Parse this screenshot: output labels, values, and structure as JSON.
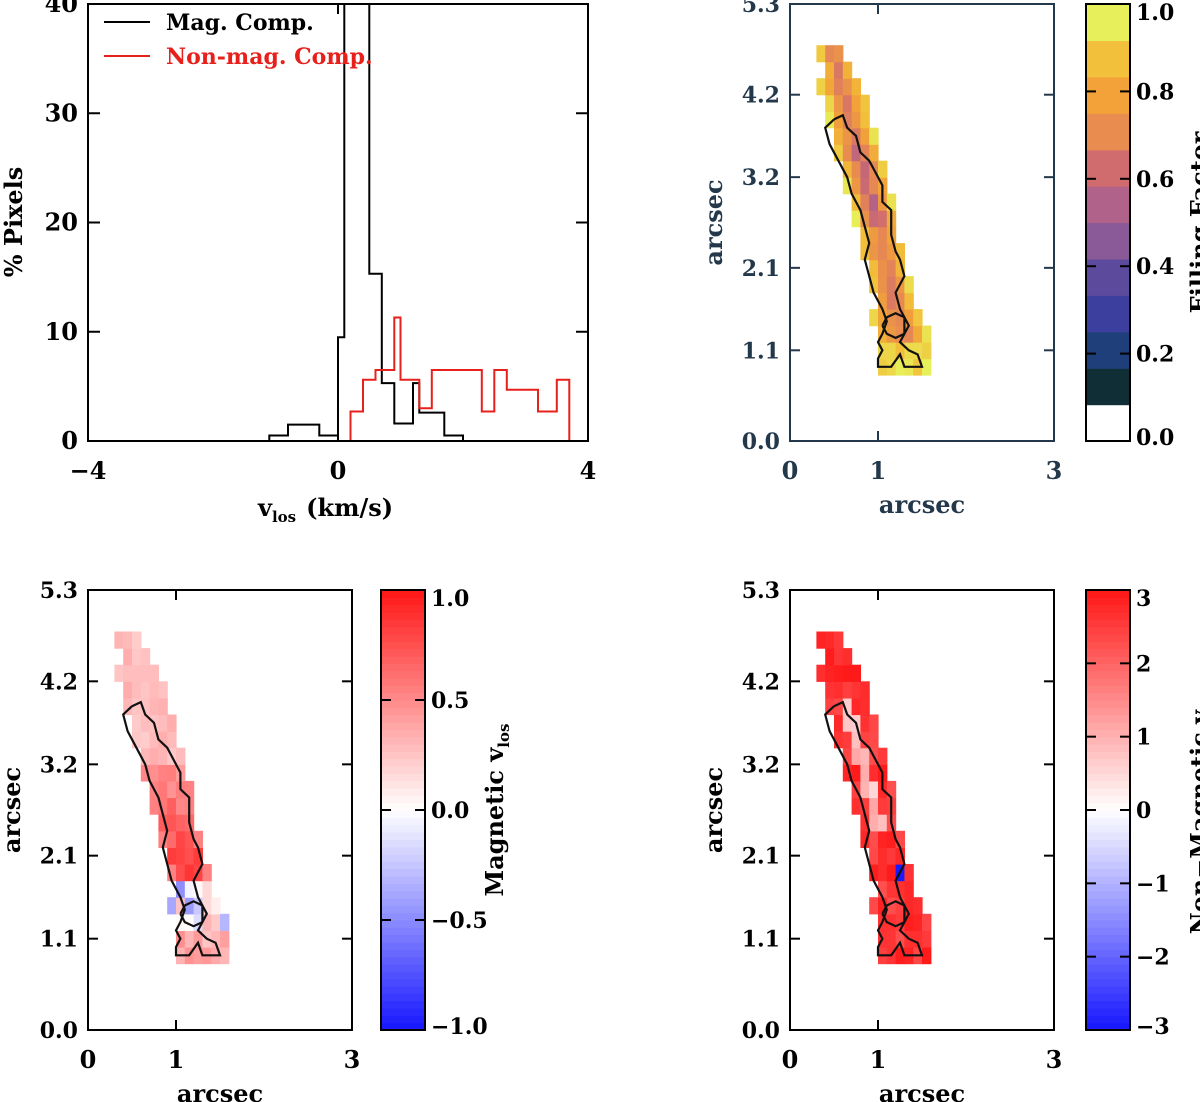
{
  "chart_data": [
    {
      "type": "line",
      "panel": "histogram",
      "xlabel_main": "v",
      "xlabel_sub": "los",
      "xlabel_unit": "(km/s)",
      "ylabel": "% Pixels",
      "xlim": [
        -4,
        4
      ],
      "ylim": [
        0,
        40
      ],
      "xticks": [
        "−4",
        "0",
        "4"
      ],
      "xtick_values": [
        -4,
        0,
        4
      ],
      "yticks": [
        "0",
        "10",
        "20",
        "30",
        "40"
      ],
      "ytick_values": [
        0,
        10,
        20,
        30,
        40
      ],
      "legend_position": "top-left",
      "series": [
        {
          "name": "Mag. Comp.",
          "color": "#000000",
          "steps": [
            [
              -4.0,
              0
            ],
            [
              -1.1,
              0
            ],
            [
              -1.1,
              0.5
            ],
            [
              -0.8,
              0.5
            ],
            [
              -0.8,
              1.5
            ],
            [
              -0.3,
              1.5
            ],
            [
              -0.3,
              0.5
            ],
            [
              0.0,
              0.5
            ],
            [
              0.0,
              9.5
            ],
            [
              0.1,
              9.5
            ],
            [
              0.1,
              40
            ],
            [
              0.5,
              40
            ],
            [
              0.5,
              15.3
            ],
            [
              0.7,
              15.3
            ],
            [
              0.7,
              5.3
            ],
            [
              0.9,
              5.3
            ],
            [
              0.9,
              1.6
            ],
            [
              1.2,
              1.6
            ],
            [
              1.2,
              5.3
            ],
            [
              1.3,
              5.3
            ],
            [
              1.3,
              2.6
            ],
            [
              1.7,
              2.6
            ],
            [
              1.7,
              0.5
            ],
            [
              2.0,
              0.5
            ],
            [
              2.0,
              0
            ]
          ]
        },
        {
          "name": "Non-mag. Comp.",
          "color": "#e8201c",
          "steps": [
            [
              -4.0,
              0
            ],
            [
              0.2,
              0
            ],
            [
              0.2,
              2.7
            ],
            [
              0.4,
              2.7
            ],
            [
              0.4,
              5.6
            ],
            [
              0.6,
              5.6
            ],
            [
              0.6,
              6.5
            ],
            [
              0.9,
              6.5
            ],
            [
              0.9,
              11.3
            ],
            [
              1.0,
              11.3
            ],
            [
              1.0,
              5.6
            ],
            [
              1.3,
              5.6
            ],
            [
              1.3,
              3.0
            ],
            [
              1.5,
              3.0
            ],
            [
              1.5,
              6.5
            ],
            [
              2.3,
              6.5
            ],
            [
              2.3,
              2.7
            ],
            [
              2.5,
              2.7
            ],
            [
              2.5,
              6.5
            ],
            [
              2.7,
              6.5
            ],
            [
              2.7,
              4.7
            ],
            [
              3.2,
              4.7
            ],
            [
              3.2,
              2.7
            ],
            [
              3.5,
              2.7
            ],
            [
              3.5,
              5.6
            ],
            [
              3.7,
              5.6
            ],
            [
              3.7,
              0
            ],
            [
              4.0,
              0
            ]
          ]
        }
      ]
    },
    {
      "type": "heatmap",
      "panel": "filling-factor",
      "xlabel": "arcsec",
      "ylabel": "arcsec",
      "xlim": [
        0,
        3
      ],
      "ylim": [
        0.0,
        5.3
      ],
      "xticks": [
        "0",
        "1",
        "3"
      ],
      "xtick_values": [
        0,
        1,
        3
      ],
      "yticks": [
        "0.0",
        "1.1",
        "2.1",
        "3.2",
        "4.2",
        "5.3"
      ],
      "ytick_values": [
        0.0,
        1.1,
        2.1,
        3.2,
        4.2,
        5.3
      ],
      "colorbar_label": "Filling Factor",
      "colorbar_range": [
        0.0,
        1.0
      ],
      "colorbar_ticks": [
        "0.0",
        "0.2",
        "0.4",
        "0.6",
        "0.8",
        "1.0"
      ],
      "colorbar_tick_values": [
        0.0,
        0.2,
        0.4,
        0.6,
        0.8,
        1.0
      ],
      "colormap": [
        "#ffffff",
        "#0f2e35",
        "#1f3f7a",
        "#3d3f9e",
        "#5c4a9c",
        "#8a5a98",
        "#b0628a",
        "#d06c6e",
        "#e88c50",
        "#f2a238",
        "#f2c03a",
        "#e7f05a"
      ],
      "grid_bounds": {
        "x": [
          0.2,
          1.6
        ],
        "y": [
          0.8,
          4.8
        ]
      },
      "grid_cols": 14,
      "grid_rows": 20,
      "values": "computed-from-structure",
      "contour": "outline"
    },
    {
      "type": "heatmap",
      "panel": "magnetic-vlos",
      "xlabel": "arcsec",
      "ylabel": "arcsec",
      "xlim": [
        0,
        3
      ],
      "ylim": [
        0.0,
        5.3
      ],
      "xticks": [
        "0",
        "1",
        "3"
      ],
      "xtick_values": [
        0,
        1,
        3
      ],
      "yticks": [
        "0.0",
        "1.1",
        "2.1",
        "3.2",
        "4.2",
        "5.3"
      ],
      "ytick_values": [
        0.0,
        1.1,
        2.1,
        3.2,
        4.2,
        5.3
      ],
      "colorbar_label_main": "Magnetic v",
      "colorbar_label_sub": "los",
      "colorbar_range": [
        -1.0,
        1.0
      ],
      "colorbar_ticks": [
        "−1.0",
        "−0.5",
        "0.0",
        "0.5",
        "1.0"
      ],
      "colorbar_tick_values": [
        -1.0,
        -0.5,
        0.0,
        0.5,
        1.0
      ],
      "colormap": [
        "#1a1aff",
        "#ffffff",
        "#ff1a1a"
      ]
    },
    {
      "type": "heatmap",
      "panel": "nonmagnetic-vlos",
      "xlabel": "arcsec",
      "ylabel": "arcsec",
      "xlim": [
        0,
        3
      ],
      "ylim": [
        0.0,
        5.3
      ],
      "xticks": [
        "0",
        "1",
        "3"
      ],
      "xtick_values": [
        0,
        1,
        3
      ],
      "yticks": [
        "0.0",
        "1.1",
        "2.1",
        "3.2",
        "4.2",
        "5.3"
      ],
      "ytick_values": [
        0.0,
        1.1,
        2.1,
        3.2,
        4.2,
        5.3
      ],
      "colorbar_label_main": "Non−Magnetic v",
      "colorbar_label_sub": "los",
      "colorbar_range": [
        -3,
        3
      ],
      "colorbar_ticks": [
        "−3",
        "−2",
        "−1",
        "0",
        "1",
        "2",
        "3"
      ],
      "colorbar_tick_values": [
        -3,
        -2,
        -1,
        0,
        1,
        2,
        3
      ],
      "colormap": [
        "#1a1aff",
        "#ffffff",
        "#ff1a1a"
      ]
    }
  ]
}
